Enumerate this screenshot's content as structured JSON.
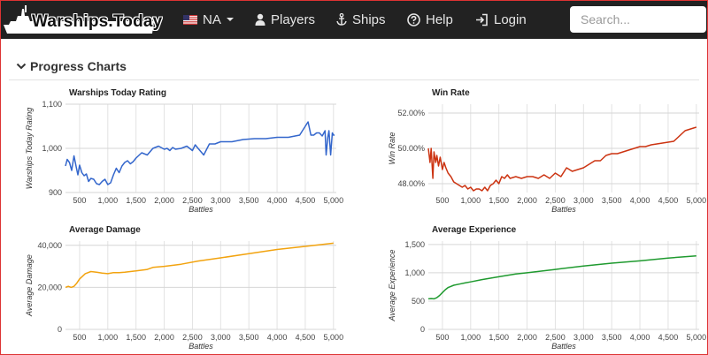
{
  "nav": {
    "brand": "Warships.Today",
    "region": "NA",
    "players": "Players",
    "ships": "Ships",
    "help": "Help",
    "login": "Login",
    "search_placeholder": "Search..."
  },
  "section": {
    "title": "Progress Charts"
  },
  "chart_data": [
    {
      "type": "line",
      "title": "Warships Today Rating",
      "xlabel": "Battles",
      "ylabel": "Warships Today Rating",
      "color": "#3366cc",
      "xlim": [
        250,
        5050
      ],
      "ylim": [
        900,
        1100
      ],
      "xticks": [
        500,
        1000,
        1500,
        2000,
        2500,
        3000,
        3500,
        4000,
        4500,
        5000
      ],
      "xtick_labels": [
        "500",
        "1,000",
        "1,500",
        "2,000",
        "2,500",
        "3,000",
        "3,500",
        "4,000",
        "4,500",
        "5,000"
      ],
      "yticks": [
        900,
        1000,
        1100
      ],
      "ytick_labels": [
        "900",
        "1,000",
        "1,100"
      ],
      "x": [
        250,
        280,
        320,
        360,
        400,
        440,
        470,
        500,
        540,
        580,
        620,
        660,
        700,
        750,
        800,
        850,
        900,
        950,
        1000,
        1050,
        1100,
        1150,
        1200,
        1250,
        1300,
        1350,
        1400,
        1450,
        1500,
        1600,
        1700,
        1800,
        1900,
        2000,
        2050,
        2100,
        2150,
        2200,
        2300,
        2400,
        2500,
        2550,
        2600,
        2700,
        2800,
        2900,
        3000,
        3200,
        3400,
        3600,
        3800,
        4000,
        4200,
        4400,
        4550,
        4600,
        4650,
        4700,
        4750,
        4800,
        4850,
        4870,
        4900,
        4920,
        4950,
        4980,
        5000,
        5020
      ],
      "y": [
        960,
        975,
        968,
        950,
        983,
        958,
        940,
        962,
        945,
        938,
        942,
        925,
        932,
        930,
        920,
        918,
        925,
        930,
        918,
        922,
        940,
        955,
        945,
        960,
        968,
        972,
        965,
        970,
        978,
        990,
        985,
        1000,
        1005,
        998,
        1000,
        995,
        1002,
        998,
        1000,
        1005,
        995,
        1008,
        1000,
        985,
        1010,
        1010,
        1015,
        1015,
        1020,
        1022,
        1022,
        1025,
        1025,
        1030,
        1060,
        1030,
        1030,
        1035,
        1035,
        1028,
        1040,
        985,
        1025,
        1040,
        985,
        1035,
        1030,
        1030
      ]
    },
    {
      "type": "line",
      "title": "Win Rate",
      "xlabel": "Battles",
      "ylabel": "Win Rate",
      "color": "#cc3311",
      "xlim": [
        250,
        5050
      ],
      "ylim": [
        47.5,
        52.5
      ],
      "xticks": [
        500,
        1000,
        1500,
        2000,
        2500,
        3000,
        3500,
        4000,
        4500,
        5000
      ],
      "xtick_labels": [
        "500",
        "1,000",
        "1,500",
        "2,000",
        "2,500",
        "3,000",
        "3,500",
        "4,000",
        "4,500",
        "5,000"
      ],
      "yticks": [
        48,
        50,
        52
      ],
      "ytick_labels": [
        "48.00%",
        "50.00%",
        "52.00%"
      ],
      "x": [
        250,
        280,
        300,
        330,
        350,
        380,
        400,
        430,
        460,
        500,
        530,
        560,
        600,
        650,
        700,
        750,
        800,
        850,
        900,
        950,
        1000,
        1050,
        1100,
        1150,
        1200,
        1250,
        1300,
        1350,
        1400,
        1450,
        1500,
        1550,
        1600,
        1650,
        1700,
        1800,
        1900,
        2000,
        2100,
        2200,
        2300,
        2400,
        2500,
        2600,
        2700,
        2800,
        2900,
        3000,
        3100,
        3200,
        3300,
        3400,
        3500,
        3600,
        3800,
        4000,
        4100,
        4200,
        4400,
        4600,
        4800,
        4900,
        5000
      ],
      "y": [
        50.0,
        49.2,
        50.0,
        48.3,
        49.8,
        49.2,
        49.6,
        49.0,
        49.5,
        48.8,
        49.2,
        48.9,
        48.6,
        48.4,
        48.1,
        48.0,
        47.9,
        47.8,
        47.9,
        47.7,
        47.8,
        47.6,
        47.7,
        47.7,
        47.6,
        47.8,
        47.6,
        47.9,
        48.0,
        48.2,
        48.0,
        48.4,
        48.3,
        48.5,
        48.3,
        48.4,
        48.3,
        48.4,
        48.4,
        48.3,
        48.5,
        48.3,
        48.6,
        48.4,
        48.9,
        48.7,
        48.8,
        48.9,
        49.1,
        49.3,
        49.3,
        49.6,
        49.7,
        49.7,
        49.9,
        50.1,
        50.1,
        50.2,
        50.3,
        50.4,
        51.0,
        51.1,
        51.2
      ]
    },
    {
      "type": "line",
      "title": "Average Damage",
      "xlabel": "Battles",
      "ylabel": "Average Damage",
      "color": "#f2a30f",
      "xlim": [
        250,
        5050
      ],
      "ylim": [
        0,
        42000
      ],
      "xticks": [
        500,
        1000,
        1500,
        2000,
        2500,
        3000,
        3500,
        4000,
        4500,
        5000
      ],
      "xtick_labels": [
        "500",
        "1,000",
        "1,500",
        "2,000",
        "2,500",
        "3,000",
        "3,500",
        "4,000",
        "4,500",
        "5,000"
      ],
      "yticks": [
        0,
        20000,
        40000
      ],
      "ytick_labels": [
        "0",
        "20,000",
        "40,000"
      ],
      "x": [
        250,
        300,
        350,
        400,
        450,
        500,
        600,
        700,
        800,
        900,
        1000,
        1100,
        1200,
        1300,
        1500,
        1700,
        1800,
        2000,
        2300,
        2600,
        3000,
        3500,
        4000,
        4500,
        5000
      ],
      "y": [
        20000,
        20500,
        20000,
        20500,
        22000,
        24000,
        26500,
        27500,
        27200,
        26800,
        26500,
        27000,
        27000,
        27200,
        27800,
        28500,
        29500,
        30000,
        31000,
        32500,
        34000,
        36000,
        38000,
        39500,
        41000
      ]
    },
    {
      "type": "line",
      "title": "Average Experience",
      "xlabel": "Battles",
      "ylabel": "Average Experience",
      "color": "#1f9a2f",
      "xlim": [
        250,
        5050
      ],
      "ylim": [
        0,
        1560
      ],
      "xticks": [
        500,
        1000,
        1500,
        2000,
        2500,
        3000,
        3500,
        4000,
        4500,
        5000
      ],
      "xtick_labels": [
        "500",
        "1,000",
        "1,500",
        "2,000",
        "2,500",
        "3,000",
        "3,500",
        "4,000",
        "4,500",
        "5,000"
      ],
      "yticks": [
        0,
        500,
        1000,
        1500
      ],
      "ytick_labels": [
        "0",
        "500",
        "1,000",
        "1,500"
      ],
      "x": [
        250,
        300,
        350,
        400,
        450,
        500,
        550,
        600,
        700,
        800,
        900,
        1000,
        1200,
        1500,
        1800,
        2000,
        2500,
        3000,
        3500,
        4000,
        4500,
        5000
      ],
      "y": [
        540,
        545,
        540,
        560,
        600,
        650,
        700,
        740,
        780,
        800,
        820,
        840,
        880,
        930,
        980,
        1000,
        1060,
        1120,
        1170,
        1210,
        1260,
        1300
      ]
    }
  ]
}
